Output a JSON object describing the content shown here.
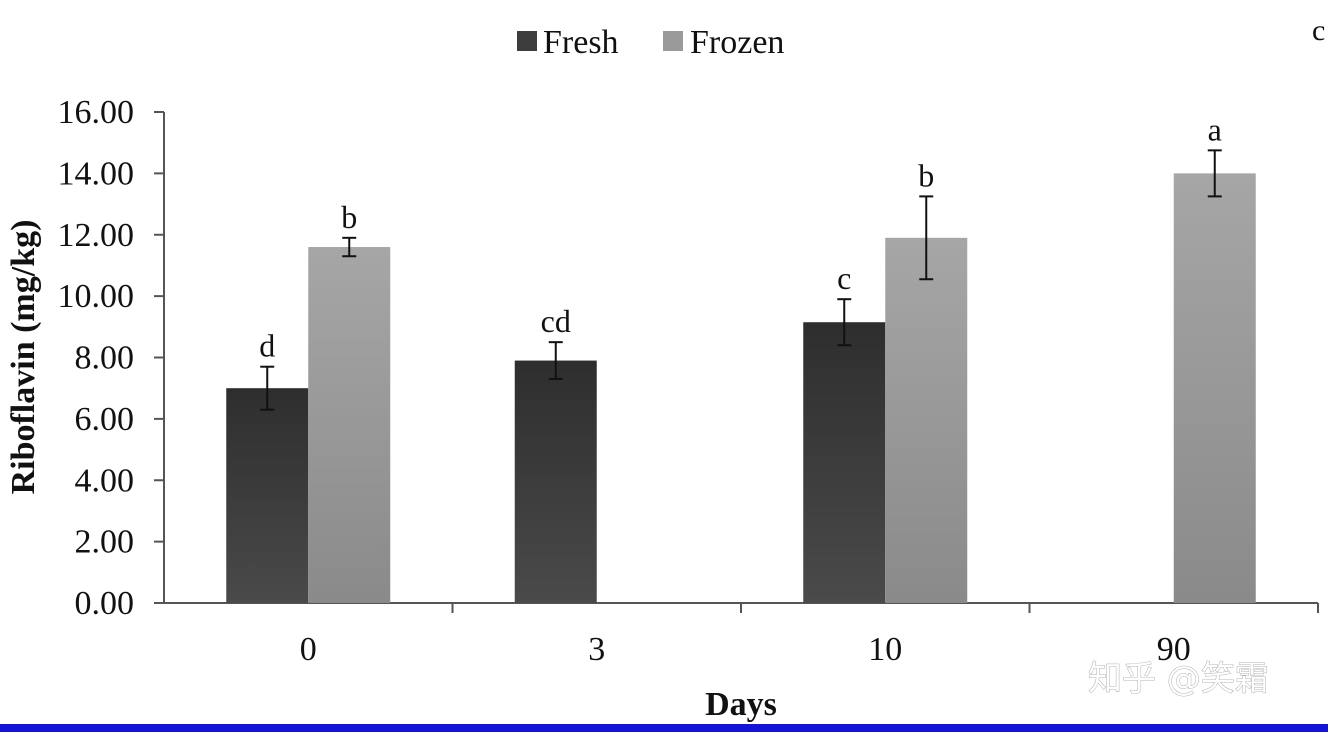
{
  "chart_data": {
    "type": "bar",
    "title": "",
    "xlabel": "Days",
    "ylabel": "Riboflavin (mg/kg)",
    "categories": [
      "0",
      "3",
      "10",
      "90"
    ],
    "ylim": [
      0,
      16
    ],
    "yticks": [
      "0.00",
      "2.00",
      "4.00",
      "6.00",
      "8.00",
      "10.00",
      "12.00",
      "14.00",
      "16.00"
    ],
    "grid": false,
    "legend_position": "top-center",
    "series": [
      {
        "name": "Fresh",
        "color": "#3d3d3d",
        "values": [
          7.0,
          7.9,
          9.15,
          null
        ],
        "errors": [
          0.7,
          0.6,
          0.75,
          null
        ],
        "labels": [
          "d",
          "cd",
          "c",
          null
        ]
      },
      {
        "name": "Frozen",
        "color": "#9a9a9a",
        "values": [
          11.6,
          null,
          11.9,
          14.0
        ],
        "errors": [
          0.3,
          null,
          1.35,
          0.75
        ],
        "labels": [
          "b",
          null,
          "b",
          "a"
        ]
      }
    ]
  },
  "corner_label": "c",
  "watermark": "知乎 @笑霜",
  "colors": {
    "bottom_rule": "#1414d6"
  }
}
